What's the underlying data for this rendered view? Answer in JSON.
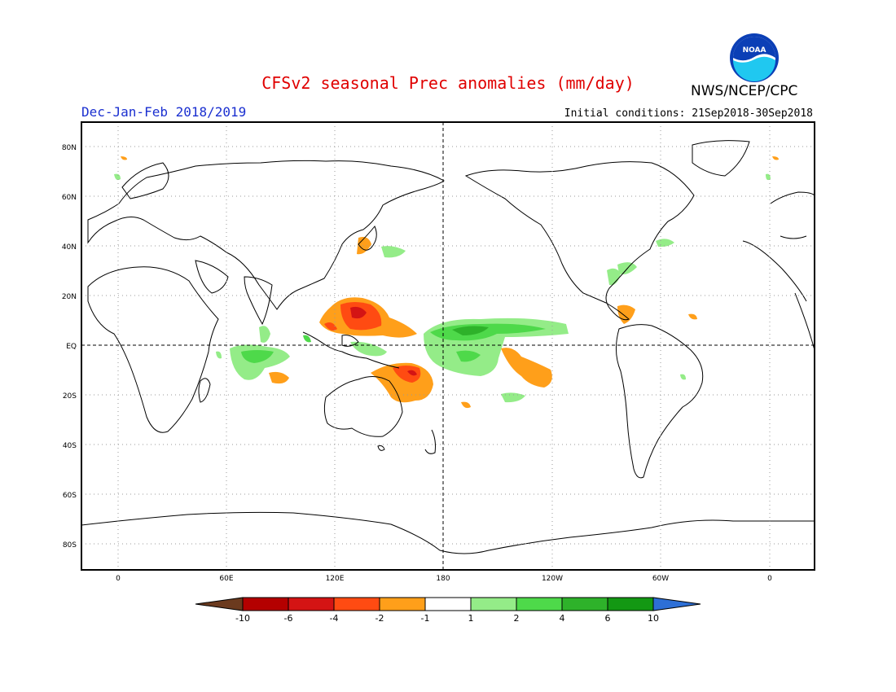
{
  "title": "CFSv2 seasonal Prec anomalies (mm/day)",
  "season": "Dec-Jan-Feb 2018/2019",
  "initial_conditions": "Initial conditions: 21Sep2018-30Sep2018",
  "agency": "NWS/NCEP/CPC",
  "logo_text": "NOAA",
  "map": {
    "lat_labels": [
      "80N",
      "60N",
      "40N",
      "20N",
      "EQ",
      "20S",
      "40S",
      "60S",
      "80S"
    ],
    "lon_labels": [
      "0",
      "60E",
      "120E",
      "180",
      "120W",
      "60W",
      "0"
    ],
    "date_line_dashed": true,
    "equator_dashed": true,
    "grid": "dotted"
  },
  "colorbar": {
    "labels": [
      "-10",
      "-6",
      "-4",
      "-2",
      "-1",
      "1",
      "2",
      "4",
      "6",
      "10"
    ],
    "colors": [
      "#6b3a1e",
      "#b40000",
      "#d41414",
      "#ff4b12",
      "#ff9f1a",
      "#ffffff",
      "#94ec88",
      "#4ed94a",
      "#2eb22a",
      "#139813",
      "#2d6fd6"
    ]
  },
  "colors": {
    "title": "#e00000",
    "season": "#1a2fd0",
    "light_green": "#94ec88",
    "green": "#4ed94a",
    "dark_green": "#2eb22a",
    "orange": "#ff9f1a",
    "red_orange": "#ff4b12",
    "red": "#d41414"
  }
}
